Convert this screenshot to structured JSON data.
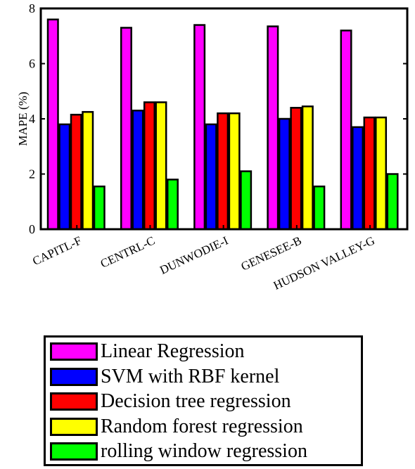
{
  "chart_data": {
    "type": "bar",
    "title": "",
    "xlabel": "",
    "ylabel": "MAPE (%)",
    "ylim": [
      0,
      8
    ],
    "yticks": [
      0,
      2,
      4,
      6,
      8
    ],
    "grid": false,
    "legend_position": "bottom",
    "categories": [
      "CAPITL-F",
      "CENTRL-C",
      "DUNWODIE-I",
      "GENESEE-B",
      "HUDSON VALLEY-G"
    ],
    "series": [
      {
        "name": "Linear Regression",
        "color": "#ff00ff",
        "values": [
          7.6,
          7.3,
          7.4,
          7.35,
          7.2
        ]
      },
      {
        "name": "SVM with RBF kernel",
        "color": "#0000ff",
        "values": [
          3.8,
          4.3,
          3.8,
          4.0,
          3.7
        ]
      },
      {
        "name": "Decision tree regression",
        "color": "#ff0000",
        "values": [
          4.15,
          4.6,
          4.2,
          4.4,
          4.05
        ]
      },
      {
        "name": "Random forest regression",
        "color": "#ffff00",
        "values": [
          4.25,
          4.6,
          4.2,
          4.45,
          4.05
        ]
      },
      {
        "name": "rolling window regression",
        "color": "#00ff00",
        "values": [
          1.55,
          1.8,
          2.1,
          1.55,
          2.0
        ]
      }
    ]
  }
}
